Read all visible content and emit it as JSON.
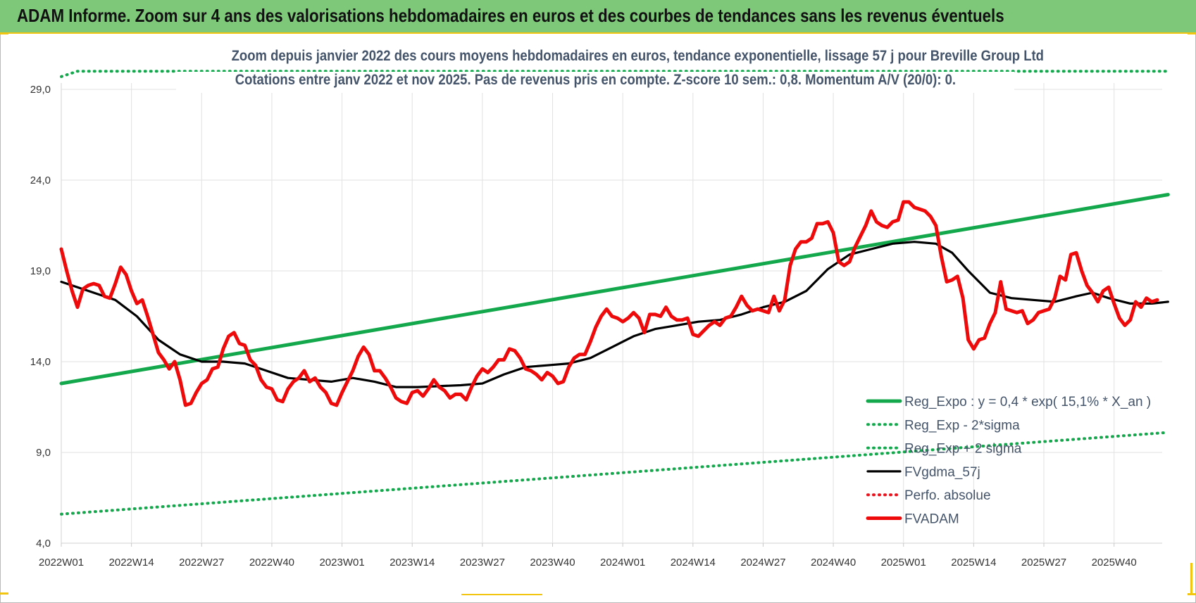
{
  "banner": {
    "title": "ADAM Informe. Zoom sur 4 ans des valorisations hebdomadaires en euros et des courbes de tendances sans les revenus éventuels"
  },
  "colors": {
    "banner_bg": "#7ec87a",
    "trend": "#14a84c",
    "smooth": "#000000",
    "price": "#ee0a0a",
    "perf": "#e8101a"
  },
  "chart_data": {
    "type": "line",
    "title": "Zoom depuis janvier 2022 des cours moyens hebdomadaires en euros, tendance exponentielle, lissage 57 j pour Breville Group Ltd",
    "subtitle": "Cotations entre janv 2022 et nov 2025. Pas de revenus pris en compte. Z-score 10 sem.: 0,8. Momentum A/V (20/0): 0.",
    "xlabel": "",
    "ylabel": "",
    "ylim": [
      4,
      29
    ],
    "yticks": [
      "4,0",
      "9,0",
      "14,0",
      "19,0",
      "24,0",
      "29,0"
    ],
    "xticks": [
      "2022W01",
      "2022W14",
      "2022W27",
      "2022W40",
      "2023W01",
      "2023W14",
      "2023W27",
      "2023W40",
      "2024W01",
      "2024W14",
      "2024W27",
      "2024W40",
      "2025W01",
      "2025W14",
      "2025W27",
      "2025W40"
    ],
    "grid": true,
    "legend_position": "bottom-right",
    "series": [
      {
        "name": "Reg_Expo : y = 0,4 * exp( 15,1% * X_an )",
        "style": "solid-thick",
        "color": "#14a84c",
        "points": [
          [
            0,
            12.8
          ],
          [
            205,
            23.2
          ]
        ]
      },
      {
        "name": "Reg_Exp - 2*sigma",
        "style": "dotted",
        "color": "#14a84c",
        "points": [
          [
            0,
            5.6
          ],
          [
            205,
            10.1
          ]
        ]
      },
      {
        "name": "Reg_Exp + 2 sigma",
        "style": "dotted",
        "color": "#14a84c",
        "points": [
          [
            0,
            29.7
          ],
          [
            3,
            30.0
          ],
          [
            22,
            30.1
          ],
          [
            60,
            30.3
          ],
          [
            120,
            30.5
          ],
          [
            205,
            30.1
          ]
        ]
      },
      {
        "name": "FVgdma_57j",
        "style": "solid",
        "color": "#000000",
        "points": [
          [
            0,
            18.4
          ],
          [
            6,
            17.8
          ],
          [
            10,
            17.4
          ],
          [
            14,
            16.5
          ],
          [
            18,
            15.2
          ],
          [
            22,
            14.4
          ],
          [
            26,
            14.0
          ],
          [
            30,
            14.0
          ],
          [
            34,
            13.9
          ],
          [
            38,
            13.5
          ],
          [
            42,
            13.1
          ],
          [
            46,
            13.0
          ],
          [
            50,
            12.9
          ],
          [
            54,
            13.1
          ],
          [
            58,
            12.9
          ],
          [
            62,
            12.6
          ],
          [
            66,
            12.6
          ],
          [
            74,
            12.7
          ],
          [
            78,
            12.8
          ],
          [
            82,
            13.3
          ],
          [
            86,
            13.7
          ],
          [
            90,
            13.8
          ],
          [
            94,
            13.9
          ],
          [
            98,
            14.2
          ],
          [
            102,
            14.8
          ],
          [
            106,
            15.4
          ],
          [
            110,
            15.8
          ],
          [
            114,
            16.0
          ],
          [
            118,
            16.2
          ],
          [
            122,
            16.3
          ],
          [
            126,
            16.6
          ],
          [
            130,
            17.0
          ],
          [
            134,
            17.3
          ],
          [
            138,
            17.9
          ],
          [
            142,
            19.1
          ],
          [
            146,
            19.9
          ],
          [
            150,
            20.2
          ],
          [
            154,
            20.5
          ],
          [
            158,
            20.6
          ],
          [
            162,
            20.5
          ],
          [
            165,
            20.0
          ],
          [
            168,
            19.0
          ],
          [
            172,
            17.8
          ],
          [
            176,
            17.5
          ],
          [
            180,
            17.4
          ],
          [
            184,
            17.3
          ],
          [
            188,
            17.6
          ],
          [
            191,
            17.8
          ],
          [
            194,
            17.5
          ],
          [
            198,
            17.2
          ],
          [
            202,
            17.2
          ],
          [
            205,
            17.3
          ]
        ]
      },
      {
        "name": "Perfo. absolue",
        "style": "dotted",
        "color": "#e8101a",
        "points": []
      },
      {
        "name": "FVADAM",
        "style": "solid-thick",
        "color": "#ee0a0a",
        "points": [
          [
            0,
            20.2
          ],
          [
            1,
            19.0
          ],
          [
            2,
            17.9
          ],
          [
            3,
            17.0
          ],
          [
            4,
            18.0
          ],
          [
            5,
            18.2
          ],
          [
            6,
            18.3
          ],
          [
            7,
            18.2
          ],
          [
            8,
            17.6
          ],
          [
            9,
            17.5
          ],
          [
            10,
            18.3
          ],
          [
            11,
            19.2
          ],
          [
            12,
            18.8
          ],
          [
            13,
            17.9
          ],
          [
            14,
            17.2
          ],
          [
            15,
            17.4
          ],
          [
            16,
            16.5
          ],
          [
            17,
            15.5
          ],
          [
            18,
            14.5
          ],
          [
            19,
            14.1
          ],
          [
            20,
            13.6
          ],
          [
            21,
            14.0
          ],
          [
            22,
            13.0
          ],
          [
            23,
            11.6
          ],
          [
            24,
            11.7
          ],
          [
            25,
            12.3
          ],
          [
            26,
            12.8
          ],
          [
            27,
            13.0
          ],
          [
            28,
            13.6
          ],
          [
            29,
            13.7
          ],
          [
            30,
            14.7
          ],
          [
            31,
            15.4
          ],
          [
            32,
            15.6
          ],
          [
            33,
            15.0
          ],
          [
            34,
            14.9
          ],
          [
            35,
            14.1
          ],
          [
            36,
            13.8
          ],
          [
            37,
            13.0
          ],
          [
            38,
            12.6
          ],
          [
            39,
            12.5
          ],
          [
            40,
            11.9
          ],
          [
            41,
            11.8
          ],
          [
            42,
            12.5
          ],
          [
            43,
            12.9
          ],
          [
            44,
            13.1
          ],
          [
            45,
            13.5
          ],
          [
            46,
            12.9
          ],
          [
            47,
            13.1
          ],
          [
            48,
            12.6
          ],
          [
            49,
            12.3
          ],
          [
            50,
            11.7
          ],
          [
            51,
            11.6
          ],
          [
            52,
            12.3
          ],
          [
            53,
            12.9
          ],
          [
            54,
            13.5
          ],
          [
            55,
            14.3
          ],
          [
            56,
            14.8
          ],
          [
            57,
            14.4
          ],
          [
            58,
            13.5
          ],
          [
            59,
            13.5
          ],
          [
            60,
            13.1
          ],
          [
            61,
            12.6
          ],
          [
            62,
            12.0
          ],
          [
            63,
            11.8
          ],
          [
            64,
            11.7
          ],
          [
            65,
            12.3
          ],
          [
            66,
            12.4
          ],
          [
            67,
            12.1
          ],
          [
            68,
            12.5
          ],
          [
            69,
            13.0
          ],
          [
            70,
            12.6
          ],
          [
            71,
            12.4
          ],
          [
            72,
            12.0
          ],
          [
            73,
            12.2
          ],
          [
            74,
            12.2
          ],
          [
            75,
            11.9
          ],
          [
            76,
            12.6
          ],
          [
            77,
            13.2
          ],
          [
            78,
            13.6
          ],
          [
            79,
            13.4
          ],
          [
            80,
            13.7
          ],
          [
            81,
            14.1
          ],
          [
            82,
            14.1
          ],
          [
            83,
            14.7
          ],
          [
            84,
            14.6
          ],
          [
            85,
            14.2
          ],
          [
            86,
            13.6
          ],
          [
            87,
            13.5
          ],
          [
            88,
            13.3
          ],
          [
            89,
            13.0
          ],
          [
            90,
            13.4
          ],
          [
            91,
            13.2
          ],
          [
            92,
            12.8
          ],
          [
            93,
            12.9
          ],
          [
            94,
            13.7
          ],
          [
            95,
            14.2
          ],
          [
            96,
            14.4
          ],
          [
            97,
            14.4
          ],
          [
            98,
            15.1
          ],
          [
            99,
            15.9
          ],
          [
            100,
            16.5
          ],
          [
            101,
            16.9
          ],
          [
            102,
            16.5
          ],
          [
            103,
            16.4
          ],
          [
            104,
            16.2
          ],
          [
            105,
            16.4
          ],
          [
            106,
            16.7
          ],
          [
            107,
            16.4
          ],
          [
            108,
            15.6
          ],
          [
            109,
            16.6
          ],
          [
            110,
            16.6
          ],
          [
            111,
            16.5
          ],
          [
            112,
            17.0
          ],
          [
            113,
            16.5
          ],
          [
            114,
            16.3
          ],
          [
            115,
            16.3
          ],
          [
            116,
            16.4
          ],
          [
            117,
            15.5
          ],
          [
            118,
            15.4
          ],
          [
            119,
            15.7
          ],
          [
            120,
            16.0
          ],
          [
            121,
            16.2
          ],
          [
            122,
            16.0
          ],
          [
            123,
            16.4
          ],
          [
            124,
            16.5
          ],
          [
            125,
            17.0
          ],
          [
            126,
            17.6
          ],
          [
            127,
            17.1
          ],
          [
            128,
            16.8
          ],
          [
            129,
            16.9
          ],
          [
            130,
            16.8
          ],
          [
            131,
            16.7
          ],
          [
            132,
            17.6
          ],
          [
            133,
            16.8
          ],
          [
            134,
            17.4
          ],
          [
            135,
            19.3
          ],
          [
            136,
            20.2
          ],
          [
            137,
            20.6
          ],
          [
            138,
            20.6
          ],
          [
            139,
            20.8
          ],
          [
            140,
            21.6
          ],
          [
            141,
            21.6
          ],
          [
            142,
            21.7
          ],
          [
            143,
            21.1
          ],
          [
            144,
            19.5
          ],
          [
            145,
            19.3
          ],
          [
            146,
            19.5
          ],
          [
            147,
            20.3
          ],
          [
            148,
            20.9
          ],
          [
            149,
            21.5
          ],
          [
            150,
            22.3
          ],
          [
            151,
            21.7
          ],
          [
            152,
            21.5
          ],
          [
            153,
            21.4
          ],
          [
            154,
            21.7
          ],
          [
            155,
            21.8
          ],
          [
            156,
            22.8
          ],
          [
            157,
            22.8
          ],
          [
            158,
            22.5
          ],
          [
            159,
            22.4
          ],
          [
            160,
            22.3
          ],
          [
            161,
            22.0
          ],
          [
            162,
            21.5
          ],
          [
            163,
            19.8
          ],
          [
            164,
            18.4
          ],
          [
            165,
            18.5
          ],
          [
            166,
            18.7
          ],
          [
            167,
            17.5
          ],
          [
            168,
            15.2
          ],
          [
            169,
            14.7
          ],
          [
            170,
            15.2
          ],
          [
            171,
            15.3
          ],
          [
            172,
            16.1
          ],
          [
            173,
            16.7
          ],
          [
            174,
            18.4
          ],
          [
            175,
            16.9
          ],
          [
            176,
            16.8
          ],
          [
            177,
            16.7
          ],
          [
            178,
            16.8
          ],
          [
            179,
            16.1
          ],
          [
            180,
            16.3
          ],
          [
            181,
            16.7
          ],
          [
            182,
            16.8
          ],
          [
            183,
            16.9
          ],
          [
            184,
            17.5
          ],
          [
            185,
            18.7
          ],
          [
            186,
            18.5
          ],
          [
            187,
            19.9
          ],
          [
            188,
            20.0
          ],
          [
            189,
            19.0
          ],
          [
            190,
            18.2
          ],
          [
            191,
            17.8
          ],
          [
            192,
            17.3
          ],
          [
            193,
            17.9
          ],
          [
            194,
            18.1
          ],
          [
            195,
            17.2
          ],
          [
            196,
            16.4
          ],
          [
            197,
            16.0
          ],
          [
            198,
            16.3
          ],
          [
            199,
            17.3
          ],
          [
            200,
            17.0
          ],
          [
            201,
            17.5
          ],
          [
            202,
            17.3
          ],
          [
            203,
            17.4
          ]
        ]
      }
    ]
  }
}
